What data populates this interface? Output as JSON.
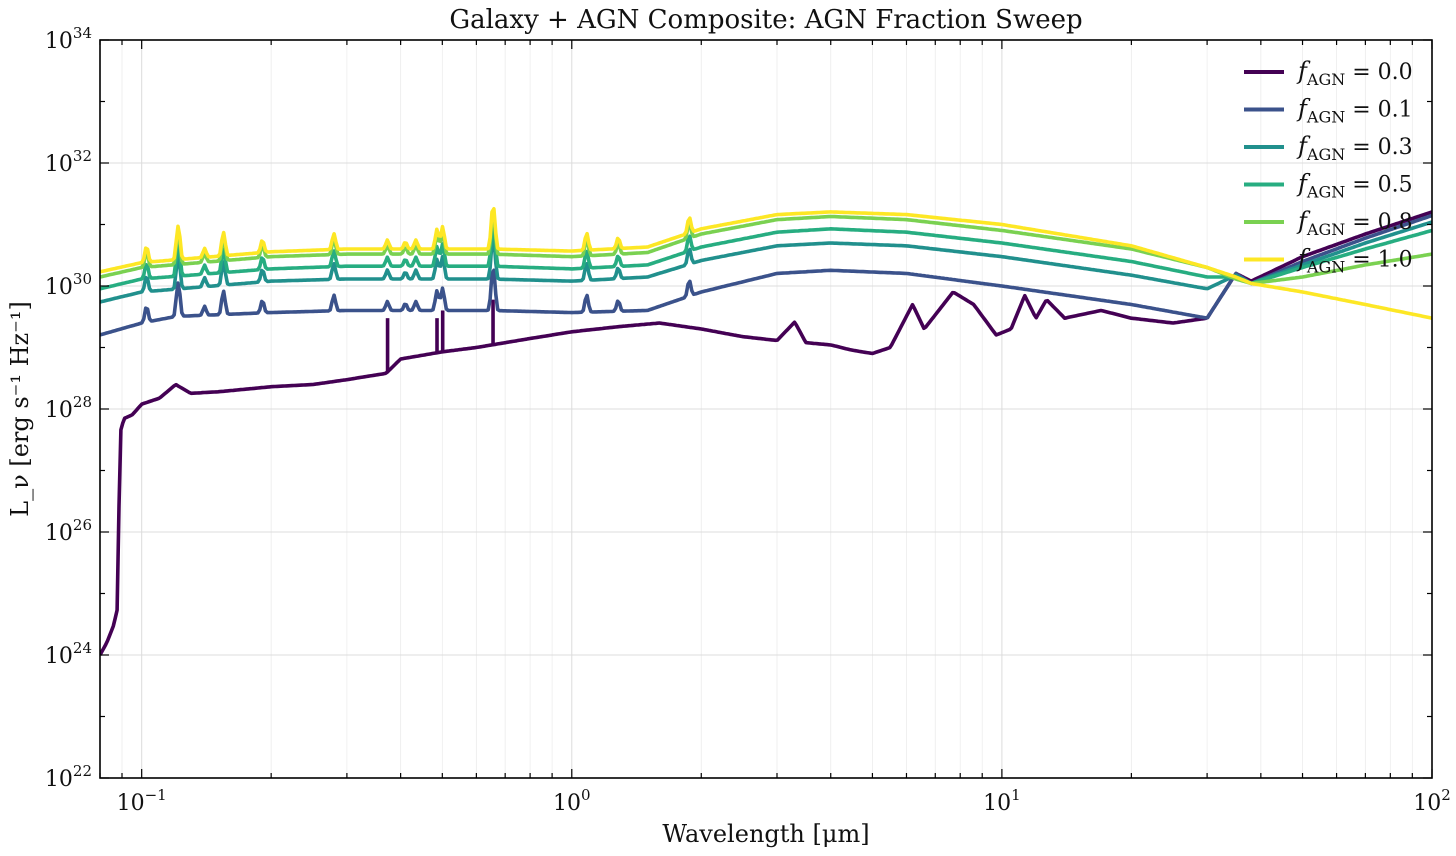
{
  "chart_data": {
    "type": "line",
    "title": "Galaxy + AGN Composite: AGN Fraction Sweep",
    "xlabel": "Wavelength [μm]",
    "ylabel": "L_ν [erg s⁻¹ Hz⁻¹]",
    "xscale": "log",
    "yscale": "log",
    "xlim": [
      0.08,
      100
    ],
    "ylim": [
      1e+22,
      1e+34
    ],
    "grid": true,
    "legend_position": "top-right",
    "x_ticks": [
      {
        "value": 0.1,
        "base": "10",
        "exp": "−1"
      },
      {
        "value": 1,
        "base": "10",
        "exp": "0"
      },
      {
        "value": 10,
        "base": "10",
        "exp": "1"
      },
      {
        "value": 100,
        "base": "10",
        "exp": "2"
      }
    ],
    "y_ticks": [
      {
        "value": 1e+22,
        "base": "10",
        "exp": "22"
      },
      {
        "value": 1e+24,
        "base": "10",
        "exp": "24"
      },
      {
        "value": 1e+26,
        "base": "10",
        "exp": "26"
      },
      {
        "value": 1e+28,
        "base": "10",
        "exp": "28"
      },
      {
        "value": 1e+30,
        "base": "10",
        "exp": "30"
      },
      {
        "value": 1e+32,
        "base": "10",
        "exp": "32"
      },
      {
        "value": 1e+34,
        "base": "10",
        "exp": "34"
      }
    ],
    "series": [
      {
        "name": "f_AGN = 0.0",
        "label_main": "f",
        "label_sub": "AGN",
        "label_val": " = 0.0",
        "color": "#440154",
        "points": [
          [
            0.08,
            1e+24
          ],
          [
            0.083,
            1.6e+24
          ],
          [
            0.086,
            3e+24
          ],
          [
            0.088,
            6e+24
          ],
          [
            0.089,
            4e+27
          ],
          [
            0.091,
            7e+27
          ],
          [
            0.095,
            8e+27
          ],
          [
            0.1,
            1.2e+28
          ],
          [
            0.11,
            1.5e+28
          ],
          [
            0.12,
            2.5e+28
          ],
          [
            0.13,
            1.8e+28
          ],
          [
            0.15,
            1.9e+28
          ],
          [
            0.2,
            2.3e+28
          ],
          [
            0.25,
            2.5e+28
          ],
          [
            0.3,
            3e+28
          ],
          [
            0.37,
            3.8e+28
          ],
          [
            0.4,
            6.5e+28
          ],
          [
            0.5,
            8.5e+28
          ],
          [
            0.6,
            1e+29
          ],
          [
            0.8,
            1.4e+29
          ],
          [
            1.0,
            1.8e+29
          ],
          [
            1.3,
            2.2e+29
          ],
          [
            1.6,
            2.5e+29
          ],
          [
            2.0,
            2e+29
          ],
          [
            2.5,
            1.5e+29
          ],
          [
            3.0,
            1.3e+29
          ],
          [
            3.3,
            2.6e+29
          ],
          [
            3.5,
            1.2e+29
          ],
          [
            4.0,
            1.1e+29
          ],
          [
            4.5,
            9e+28
          ],
          [
            5.0,
            8e+28
          ],
          [
            5.5,
            1e+29
          ],
          [
            6.2,
            5e+29
          ],
          [
            6.6,
            2e+29
          ],
          [
            7.7,
            8e+29
          ],
          [
            8.6,
            5e+29
          ],
          [
            9.7,
            1.6e+29
          ],
          [
            10.5,
            2e+29
          ],
          [
            11.3,
            7e+29
          ],
          [
            12.0,
            3e+29
          ],
          [
            12.7,
            6e+29
          ],
          [
            14,
            3e+29
          ],
          [
            17,
            4e+29
          ],
          [
            20,
            3e+29
          ],
          [
            25,
            2.5e+29
          ],
          [
            30,
            3e+29
          ],
          [
            35,
            1.6e+30
          ],
          [
            38,
            1.2e+30
          ],
          [
            50,
            3e+30
          ],
          [
            70,
            7e+30
          ],
          [
            100,
            1.6e+31
          ]
        ],
        "spikes": [
          [
            0.373,
            3e+29
          ],
          [
            0.486,
            3e+29
          ],
          [
            0.501,
            4e+29
          ],
          [
            0.656,
            6e+29
          ]
        ]
      },
      {
        "name": "f_AGN = 0.1",
        "label_main": "f",
        "label_sub": "AGN",
        "label_val": " = 0.1",
        "color": "#3b528b",
        "points": [
          [
            0.08,
            1.6e+29
          ],
          [
            0.1,
            2.5e+29
          ],
          [
            0.12,
            3.2e+29
          ],
          [
            0.2,
            3.7e+29
          ],
          [
            0.3,
            4e+29
          ],
          [
            0.5,
            4e+29
          ],
          [
            0.65,
            4e+29
          ],
          [
            1.0,
            3.7e+29
          ],
          [
            1.5,
            4e+29
          ],
          [
            2.0,
            8e+29
          ],
          [
            3.0,
            1.6e+30
          ],
          [
            4.0,
            1.8e+30
          ],
          [
            6.0,
            1.6e+30
          ],
          [
            10,
            1e+30
          ],
          [
            20,
            5e+29
          ],
          [
            30,
            3e+29
          ],
          [
            35,
            1.6e+30
          ],
          [
            38,
            1.1e+30
          ],
          [
            50,
            2.5e+30
          ],
          [
            70,
            6e+30
          ],
          [
            100,
            1.4e+31
          ]
        ]
      },
      {
        "name": "f_AGN = 0.3",
        "label_main": "f",
        "label_sub": "AGN",
        "label_val": " = 0.3",
        "color": "#21908d",
        "points": [
          [
            0.08,
            5.5e+29
          ],
          [
            0.1,
            8e+29
          ],
          [
            0.2,
            1.2e+30
          ],
          [
            0.3,
            1.3e+30
          ],
          [
            0.5,
            1.3e+30
          ],
          [
            0.65,
            1.3e+30
          ],
          [
            1.0,
            1.2e+30
          ],
          [
            1.5,
            1.4e+30
          ],
          [
            2.0,
            2.6e+30
          ],
          [
            3.0,
            4.5e+30
          ],
          [
            4.0,
            5e+30
          ],
          [
            6.0,
            4.5e+30
          ],
          [
            10,
            3e+30
          ],
          [
            20,
            1.5e+30
          ],
          [
            30,
            9e+29
          ],
          [
            35,
            1.5e+30
          ],
          [
            38,
            1.1e+30
          ],
          [
            50,
            2.2e+30
          ],
          [
            70,
            5e+30
          ],
          [
            100,
            1.1e+31
          ]
        ]
      },
      {
        "name": "f_AGN = 0.5",
        "label_main": "f",
        "label_sub": "AGN",
        "label_val": " = 0.5",
        "color": "#27ad81",
        "points": [
          [
            0.08,
            9e+29
          ],
          [
            0.1,
            1.3e+30
          ],
          [
            0.2,
            1.9e+30
          ],
          [
            0.3,
            2.1e+30
          ],
          [
            0.5,
            2.1e+30
          ],
          [
            0.65,
            2.1e+30
          ],
          [
            1.0,
            1.9e+30
          ],
          [
            1.5,
            2.2e+30
          ],
          [
            2.0,
            4.3e+30
          ],
          [
            3.0,
            7.5e+30
          ],
          [
            4.0,
            8.5e+30
          ],
          [
            6.0,
            7.5e+30
          ],
          [
            10,
            5e+30
          ],
          [
            20,
            2.5e+30
          ],
          [
            30,
            1.4e+30
          ],
          [
            35,
            1.4e+30
          ],
          [
            38,
            1.1e+30
          ],
          [
            50,
            2e+30
          ],
          [
            70,
            4e+30
          ],
          [
            100,
            8e+30
          ]
        ]
      },
      {
        "name": "f_AGN = 0.8",
        "label_main": "f",
        "label_sub": "AGN",
        "label_val": " = 0.8",
        "color": "#7ad151",
        "points": [
          [
            0.08,
            1.4e+30
          ],
          [
            0.1,
            2e+30
          ],
          [
            0.2,
            3e+30
          ],
          [
            0.3,
            3.3e+30
          ],
          [
            0.5,
            3.3e+30
          ],
          [
            0.65,
            3.3e+30
          ],
          [
            1.0,
            3e+30
          ],
          [
            1.5,
            3.5e+30
          ],
          [
            2.0,
            7e+30
          ],
          [
            3.0,
            1.2e+31
          ],
          [
            4.0,
            1.35e+31
          ],
          [
            6.0,
            1.2e+31
          ],
          [
            10,
            8e+30
          ],
          [
            20,
            4e+30
          ],
          [
            30,
            2e+30
          ],
          [
            35,
            1.3e+30
          ],
          [
            38,
            1.1e+30
          ],
          [
            50,
            1.4e+30
          ],
          [
            70,
            2.2e+30
          ],
          [
            100,
            3.3e+30
          ]
        ]
      },
      {
        "name": "f_AGN = 1.0",
        "label_main": "f",
        "label_sub": "AGN",
        "label_val": " = 1.0",
        "color": "#fde725",
        "points": [
          [
            0.08,
            1.7e+30
          ],
          [
            0.1,
            2.4e+30
          ],
          [
            0.2,
            3.6e+30
          ],
          [
            0.3,
            4e+30
          ],
          [
            0.5,
            4e+30
          ],
          [
            0.65,
            4e+30
          ],
          [
            1.0,
            3.7e+30
          ],
          [
            1.5,
            4.3e+30
          ],
          [
            2.0,
            8.5e+30
          ],
          [
            3.0,
            1.45e+31
          ],
          [
            4.0,
            1.6e+31
          ],
          [
            6.0,
            1.45e+31
          ],
          [
            10,
            1e+31
          ],
          [
            20,
            4.5e+30
          ],
          [
            30,
            2e+30
          ],
          [
            35,
            1.4e+30
          ],
          [
            38,
            1.1e+30
          ],
          [
            50,
            8e+29
          ],
          [
            70,
            5e+29
          ],
          [
            100,
            3e+29
          ]
        ]
      }
    ],
    "emission_lines": [
      {
        "wl": 0.1026,
        "amp": 1.8
      },
      {
        "wl": 0.1216,
        "amp": 3.5
      },
      {
        "wl": 0.14,
        "amp": 1.4
      },
      {
        "wl": 0.1549,
        "amp": 2.4
      },
      {
        "wl": 0.1909,
        "amp": 1.6
      },
      {
        "wl": 0.2798,
        "amp": 1.8
      },
      {
        "wl": 0.3727,
        "amp": 1.4
      },
      {
        "wl": 0.4102,
        "amp": 1.3
      },
      {
        "wl": 0.434,
        "amp": 1.4
      },
      {
        "wl": 0.4861,
        "amp": 2.1
      },
      {
        "wl": 0.5007,
        "amp": 2.3
      },
      {
        "wl": 0.6563,
        "amp": 5.0
      },
      {
        "wl": 1.083,
        "amp": 1.9
      },
      {
        "wl": 1.282,
        "amp": 1.5
      },
      {
        "wl": 1.875,
        "amp": 1.8
      }
    ]
  }
}
